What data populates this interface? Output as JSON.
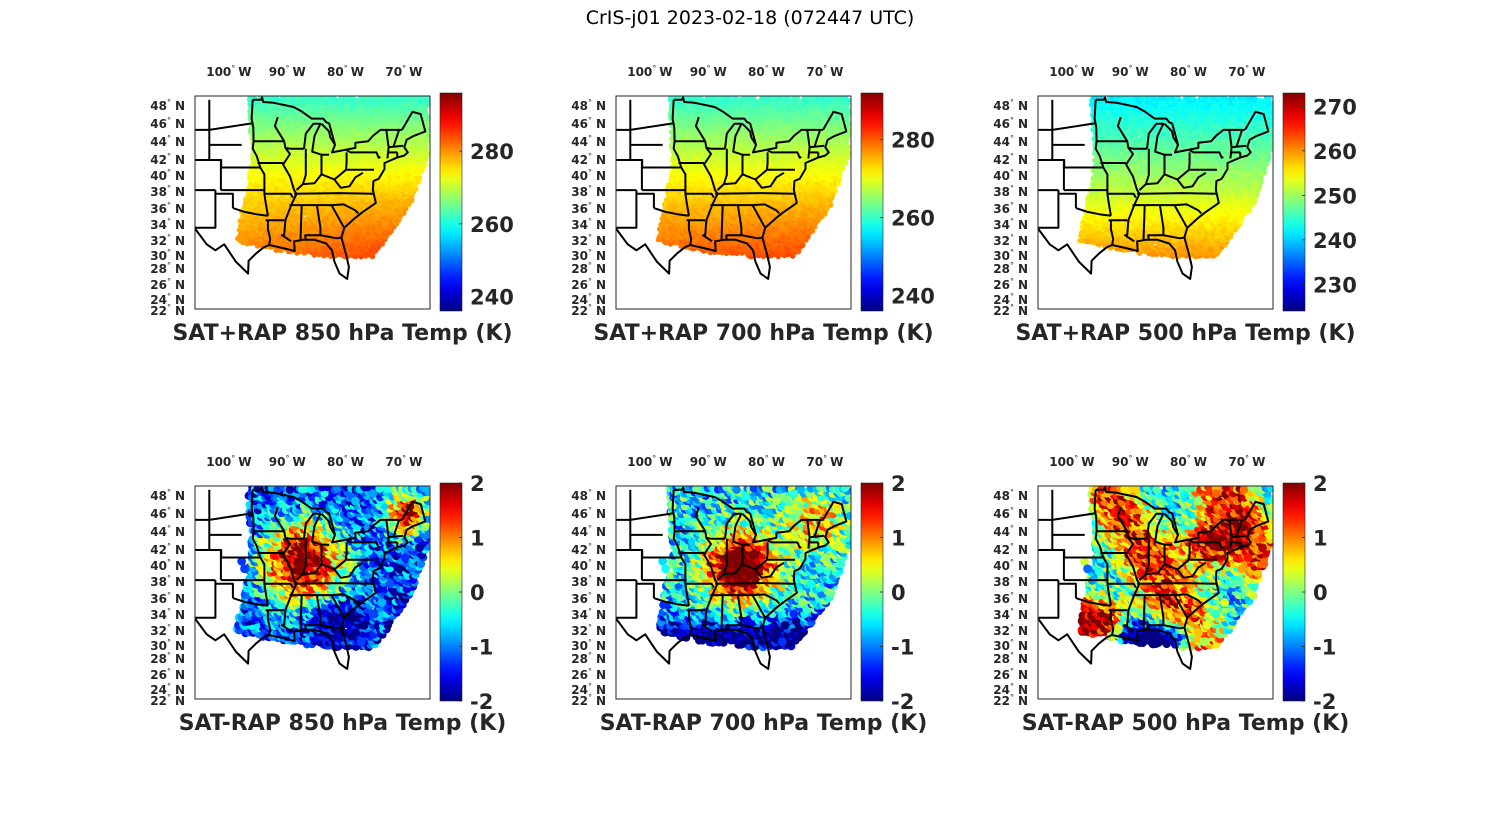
{
  "figure": {
    "title": "CrIS-j01 2023-02-18 (072447 UTC)"
  },
  "chart_data": [
    {
      "type": "heatmap",
      "title": "SAT+RAP 850 hPa Temp (K)",
      "subtype": "map-scatter",
      "colormap": "jet",
      "xlabel": "",
      "ylabel": "",
      "x_ticks": [
        "100° W",
        "90° W",
        "80° W",
        "70° W"
      ],
      "y_ticks": [
        "48° N",
        "46° N",
        "44° N",
        "42° N",
        "40° N",
        "38° N",
        "36° N",
        "34° N",
        "32° N",
        "30° N",
        "28° N",
        "26° N",
        "24° N",
        "22° N"
      ],
      "colorbar": {
        "ticks": [
          240,
          260,
          280
        ],
        "range": [
          236,
          296
        ]
      },
      "field_summary": {
        "north": 262,
        "center": 275,
        "southwest": 281,
        "southeast": 286
      }
    },
    {
      "type": "heatmap",
      "title": "SAT+RAP 700 hPa Temp (K)",
      "subtype": "map-scatter",
      "colormap": "jet",
      "xlabel": "",
      "ylabel": "",
      "x_ticks": [
        "100° W",
        "90° W",
        "80° W",
        "70° W"
      ],
      "y_ticks": [
        "48° N",
        "46° N",
        "44° N",
        "42° N",
        "40° N",
        "38° N",
        "36° N",
        "34° N",
        "32° N",
        "30° N",
        "28° N",
        "26° N",
        "24° N",
        "22° N"
      ],
      "colorbar": {
        "ticks": [
          240,
          260,
          280
        ],
        "range": [
          236,
          292
        ]
      },
      "field_summary": {
        "north": 260,
        "center": 272,
        "southwest": 280,
        "southeast": 282
      }
    },
    {
      "type": "heatmap",
      "title": "SAT+RAP 500 hPa Temp (K)",
      "subtype": "map-scatter",
      "colormap": "jet",
      "xlabel": "",
      "ylabel": "",
      "x_ticks": [
        "100° W",
        "90° W",
        "80° W",
        "70° W"
      ],
      "y_ticks": [
        "48° N",
        "46° N",
        "44° N",
        "42° N",
        "40° N",
        "38° N",
        "36° N",
        "34° N",
        "32° N",
        "30° N",
        "28° N",
        "26° N",
        "24° N",
        "22° N"
      ],
      "colorbar": {
        "ticks": [
          230,
          240,
          250,
          260,
          270
        ],
        "range": [
          224,
          273
        ]
      },
      "field_summary": {
        "north": 242,
        "center": 250,
        "southwest": 260,
        "southeast": 260
      }
    },
    {
      "type": "heatmap",
      "title": "SAT-RAP 850 hPa Temp (K)",
      "subtype": "map-scatter",
      "colormap": "jet",
      "xlabel": "",
      "ylabel": "",
      "x_ticks": [
        "100° W",
        "90° W",
        "80° W",
        "70° W"
      ],
      "y_ticks": [
        "48° N",
        "46° N",
        "44° N",
        "42° N",
        "40° N",
        "38° N",
        "36° N",
        "34° N",
        "32° N",
        "30° N",
        "28° N",
        "26° N",
        "24° N",
        "22° N"
      ],
      "colorbar": {
        "ticks": [
          -2,
          -1,
          0,
          1,
          2
        ],
        "range": [
          -2,
          2
        ]
      },
      "field_summary": {
        "north": -1.5,
        "center": 1.8,
        "southwest": -0.5,
        "southeast": -1.8
      }
    },
    {
      "type": "heatmap",
      "title": "SAT-RAP 700 hPa Temp (K)",
      "subtype": "map-scatter",
      "colormap": "jet",
      "xlabel": "",
      "ylabel": "",
      "x_ticks": [
        "100° W",
        "90° W",
        "80° W",
        "70° W"
      ],
      "y_ticks": [
        "48° N",
        "46° N",
        "44° N",
        "42° N",
        "40° N",
        "38° N",
        "36° N",
        "34° N",
        "32° N",
        "30° N",
        "28° N",
        "26° N",
        "24° N",
        "22° N"
      ],
      "colorbar": {
        "ticks": [
          -2,
          -1,
          0,
          1,
          2
        ],
        "range": [
          -2,
          2
        ]
      },
      "field_summary": {
        "north": -0.8,
        "center": 1.9,
        "southwest": -1.2,
        "southeast": -1.8
      }
    },
    {
      "type": "heatmap",
      "title": "SAT-RAP 500 hPa Temp (K)",
      "subtype": "map-scatter",
      "colormap": "jet",
      "xlabel": "",
      "ylabel": "",
      "x_ticks": [
        "100° W",
        "90° W",
        "80° W",
        "70° W"
      ],
      "y_ticks": [
        "48° N",
        "46° N",
        "44° N",
        "42° N",
        "40° N",
        "38° N",
        "36° N",
        "34° N",
        "32° N",
        "30° N",
        "28° N",
        "26° N",
        "24° N",
        "22° N"
      ],
      "colorbar": {
        "ticks": [
          -2,
          -1,
          0,
          1,
          2
        ],
        "range": [
          -2,
          2
        ]
      },
      "field_summary": {
        "north": 1.2,
        "center": 0.2,
        "southwest": 1.5,
        "southeast": -1.8
      }
    }
  ]
}
